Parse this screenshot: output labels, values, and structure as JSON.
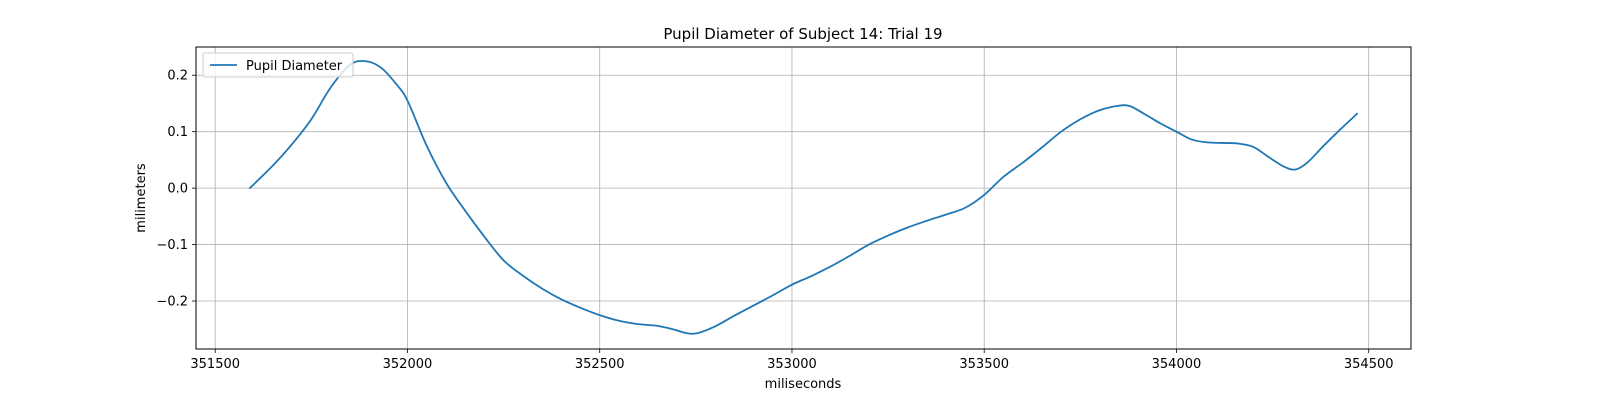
{
  "chart_data": {
    "type": "line",
    "title": "Pupil Diameter of Subject 14: Trial 19",
    "xlabel": "miliseconds",
    "ylabel": "milimeters",
    "xlim": [
      351450,
      354610
    ],
    "ylim": [
      -0.285,
      0.25
    ],
    "xticks": [
      351500,
      352000,
      352500,
      353000,
      353500,
      354000,
      354500
    ],
    "yticks": [
      -0.2,
      -0.1,
      0.0,
      0.1,
      0.2
    ],
    "xtick_labels": [
      "351500",
      "352000",
      "352500",
      "353000",
      "353500",
      "354000",
      "354500"
    ],
    "ytick_labels": [
      "−0.2",
      "−0.1",
      "0.0",
      "0.1",
      "0.2"
    ],
    "grid": true,
    "legend_position": "upper left",
    "series": [
      {
        "name": "Pupil Diameter",
        "color": "#1f77b4",
        "x": [
          351590,
          351650,
          351700,
          351750,
          351800,
          351850,
          351890,
          351930,
          351970,
          352000,
          352050,
          352100,
          352150,
          352200,
          352250,
          352300,
          352350,
          352400,
          352450,
          352500,
          352550,
          352600,
          352650,
          352690,
          352720,
          352740,
          352760,
          352800,
          352850,
          352900,
          352950,
          353000,
          353050,
          353100,
          353150,
          353200,
          353250,
          353300,
          353350,
          353400,
          353450,
          353500,
          353550,
          353600,
          353650,
          353700,
          353750,
          353800,
          353850,
          353880,
          353920,
          353960,
          354000,
          354040,
          354080,
          354120,
          354160,
          354200,
          354240,
          354280,
          354310,
          354340,
          354380,
          354420,
          354470
        ],
        "y": [
          0.0,
          0.04,
          0.078,
          0.122,
          0.178,
          0.218,
          0.225,
          0.214,
          0.185,
          0.155,
          0.075,
          0.01,
          -0.04,
          -0.086,
          -0.128,
          -0.155,
          -0.178,
          -0.197,
          -0.212,
          -0.225,
          -0.235,
          -0.241,
          -0.244,
          -0.25,
          -0.256,
          -0.258,
          -0.256,
          -0.245,
          -0.226,
          -0.208,
          -0.19,
          -0.171,
          -0.156,
          -0.139,
          -0.12,
          -0.1,
          -0.084,
          -0.07,
          -0.058,
          -0.047,
          -0.035,
          -0.012,
          0.02,
          0.045,
          0.072,
          0.1,
          0.122,
          0.138,
          0.146,
          0.145,
          0.13,
          0.114,
          0.1,
          0.086,
          0.081,
          0.08,
          0.079,
          0.073,
          0.055,
          0.038,
          0.033,
          0.045,
          0.073,
          0.1,
          0.132
        ]
      }
    ]
  }
}
